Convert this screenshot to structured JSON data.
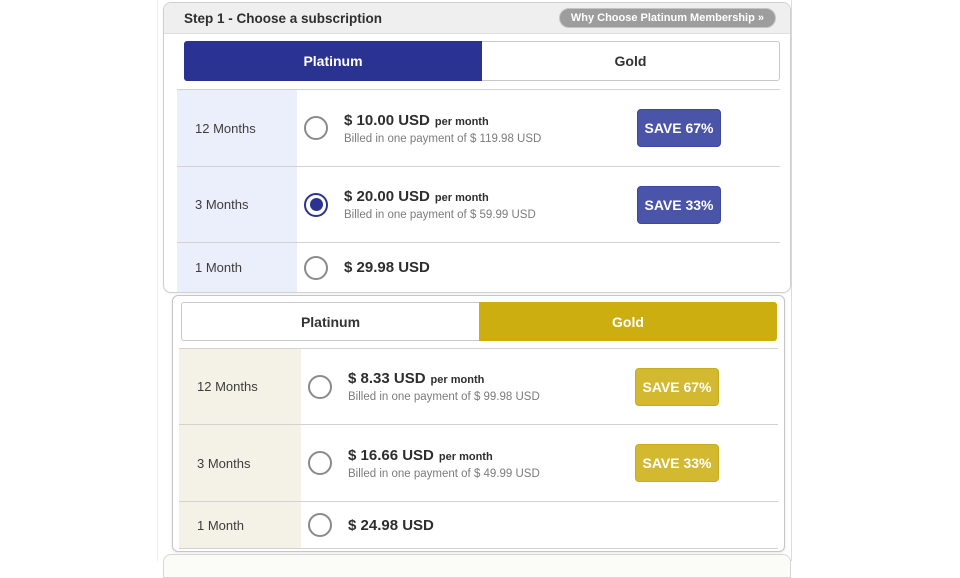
{
  "header": {
    "title": "Step 1 - Choose a subscription",
    "badge_label": "Why Choose Platinum Membership »"
  },
  "tabs": {
    "platinum": "Platinum",
    "gold": "Gold"
  },
  "platinum_table": {
    "active_tab": "Platinum",
    "rows": [
      {
        "duration": "12 Months",
        "price": "$ 10.00 USD",
        "per_month": "per month",
        "billed": "Billed in one payment of $ 119.98 USD",
        "save_label": "SAVE 67%",
        "selected": false
      },
      {
        "duration": "3 Months",
        "price": "$ 20.00 USD",
        "per_month": "per month",
        "billed": "Billed in one payment of $ 59.99 USD",
        "save_label": "SAVE 33%",
        "selected": true
      },
      {
        "duration": "1 Month",
        "price": "$ 29.98 USD",
        "selected": false
      }
    ]
  },
  "gold_table": {
    "active_tab": "Gold",
    "rows": [
      {
        "duration": "12 Months",
        "price": "$ 8.33 USD",
        "per_month": "per month",
        "billed": "Billed in one payment of $ 99.98 USD",
        "save_label": "SAVE 67%",
        "selected": false
      },
      {
        "duration": "3 Months",
        "price": "$ 16.66 USD",
        "per_month": "per month",
        "billed": "Billed in one payment of $ 49.99 USD",
        "save_label": "SAVE 33%",
        "selected": false
      },
      {
        "duration": "1 Month",
        "price": "$ 24.98 USD",
        "selected": false
      }
    ]
  },
  "colors": {
    "platinum_accent": "#2b3392",
    "platinum_save_badge": "#4a54a8",
    "gold_accent": "#ccae10",
    "gold_save_badge": "#d3b92f",
    "platinum_duration_bg": "#eaeffb",
    "gold_duration_bg": "#f4f2e6",
    "header_strip_bg": "#efefef",
    "badge_bg": "#9d9d9d"
  }
}
